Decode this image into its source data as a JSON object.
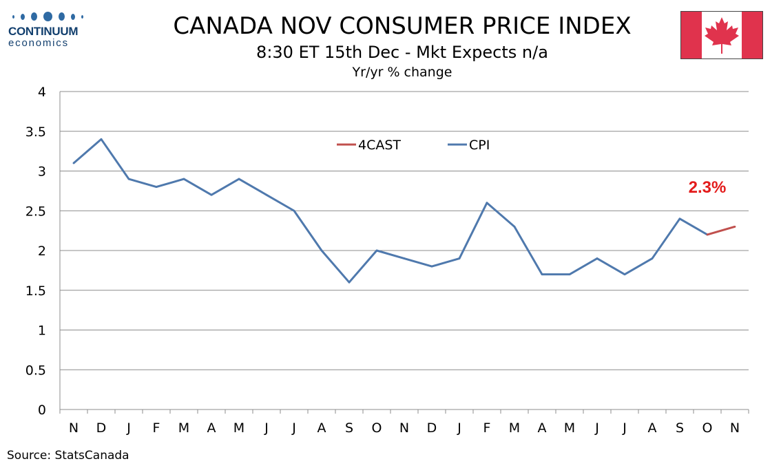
{
  "logo": {
    "name": "CONTINUUM",
    "sub": "economics"
  },
  "header": {
    "title": "CANADA NOV CONSUMER PRICE INDEX",
    "subtitle": "8:30 ET 15th Dec - Mkt Expects n/a",
    "unit": "Yr/yr % change"
  },
  "source": "Source: StatsCanada",
  "colors": {
    "cpi": "#4f79ad",
    "forecast": "#c0504d",
    "annotation": "#e31b1b",
    "flag_red": "#e0334d"
  },
  "chart_data": {
    "type": "line",
    "categories": [
      "N",
      "D",
      "J",
      "F",
      "M",
      "A",
      "M",
      "J",
      "J",
      "A",
      "S",
      "O",
      "N",
      "D",
      "J",
      "F",
      "M",
      "A",
      "M",
      "J",
      "J",
      "A",
      "S",
      "O",
      "N"
    ],
    "ylim": [
      0,
      4
    ],
    "yticks": [
      "0",
      "0.5",
      "1",
      "1.5",
      "2",
      "2.5",
      "3",
      "3.5",
      "4"
    ],
    "grid": true,
    "legend_position": "top-center",
    "series": [
      {
        "name": "4CAST",
        "color": "#c0504d",
        "values": [
          null,
          null,
          null,
          null,
          null,
          null,
          null,
          null,
          null,
          null,
          null,
          null,
          null,
          null,
          null,
          null,
          null,
          null,
          null,
          null,
          null,
          null,
          null,
          2.2,
          2.3
        ]
      },
      {
        "name": "CPI",
        "color": "#4f79ad",
        "values": [
          3.1,
          3.4,
          2.9,
          2.8,
          2.9,
          2.7,
          2.9,
          2.7,
          2.5,
          2.0,
          1.6,
          2.0,
          1.9,
          1.8,
          1.9,
          2.6,
          2.3,
          1.7,
          1.7,
          1.9,
          1.7,
          1.9,
          2.4,
          2.2,
          null
        ]
      }
    ],
    "annotation": {
      "text": "2.3%",
      "index": 24
    }
  }
}
